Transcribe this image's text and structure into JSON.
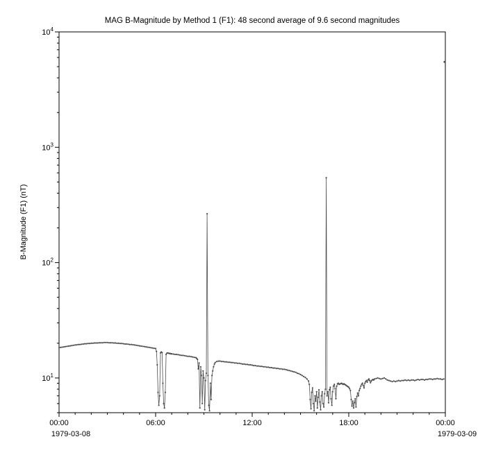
{
  "chart_data": {
    "type": "scatter",
    "title": "MAG  B-Magnitude by Method 1 (F1): 48 second average of 9.6 second magnitudes",
    "ylabel": "B-Magnitude (F1) (nT)",
    "y_scale": "log",
    "y_range": [
      5.0,
      10000
    ],
    "y_ticks_exponents": [
      1,
      2,
      3,
      4
    ],
    "x_range_hours": [
      0,
      24
    ],
    "x_ticks": [
      {
        "hours": 0,
        "label": "00:00"
      },
      {
        "hours": 6,
        "label": "06:00"
      },
      {
        "hours": 12,
        "label": "12:00"
      },
      {
        "hours": 18,
        "label": "18:00"
      },
      {
        "hours": 24,
        "label": "00:00"
      }
    ],
    "x_dates": [
      "1979-03-08",
      "1979-03-09"
    ],
    "marker_color": "#4d4d4d",
    "points": [
      [
        0,
        18.3
      ],
      [
        0.1,
        18.4
      ],
      [
        0.2,
        18.5
      ],
      [
        0.3,
        18.6
      ],
      [
        0.4,
        18.7
      ],
      [
        0.5,
        18.8
      ],
      [
        0.6,
        18.9
      ],
      [
        0.7,
        19
      ],
      [
        0.8,
        19.1
      ],
      [
        0.9,
        19.2
      ],
      [
        1,
        19.3
      ],
      [
        1.1,
        19.4
      ],
      [
        1.2,
        19.5
      ],
      [
        1.3,
        19.5
      ],
      [
        1.4,
        19.6
      ],
      [
        1.5,
        19.7
      ],
      [
        1.6,
        19.8
      ],
      [
        1.7,
        19.8
      ],
      [
        1.8,
        19.9
      ],
      [
        1.9,
        19.9
      ],
      [
        2,
        20
      ],
      [
        2.1,
        20
      ],
      [
        2.2,
        20.1
      ],
      [
        2.3,
        20.1
      ],
      [
        2.4,
        20.1
      ],
      [
        2.5,
        20.2
      ],
      [
        2.6,
        20.2
      ],
      [
        2.7,
        20.2
      ],
      [
        2.8,
        20.3
      ],
      [
        2.9,
        20.3
      ],
      [
        3,
        20.3
      ],
      [
        3.1,
        20.2
      ],
      [
        3.2,
        20.2
      ],
      [
        3.3,
        20.2
      ],
      [
        3.4,
        20.1
      ],
      [
        3.5,
        20.1
      ],
      [
        3.6,
        20
      ],
      [
        3.7,
        20
      ],
      [
        3.8,
        19.9
      ],
      [
        3.9,
        19.9
      ],
      [
        4,
        19.8
      ],
      [
        4.1,
        19.7
      ],
      [
        4.2,
        19.7
      ],
      [
        4.3,
        19.6
      ],
      [
        4.4,
        19.5
      ],
      [
        4.5,
        19.5
      ],
      [
        4.6,
        19.4
      ],
      [
        4.7,
        19.3
      ],
      [
        4.8,
        19.2
      ],
      [
        4.9,
        19.1
      ],
      [
        5,
        19
      ],
      [
        5.1,
        18.9
      ],
      [
        5.2,
        18.8
      ],
      [
        5.3,
        18.7
      ],
      [
        5.4,
        18.6
      ],
      [
        5.5,
        18.5
      ],
      [
        5.6,
        18.4
      ],
      [
        5.7,
        18.3
      ],
      [
        5.8,
        18.2
      ],
      [
        5.9,
        18.1
      ],
      [
        6,
        18
      ],
      [
        6.05,
        17
      ],
      [
        6.1,
        13
      ],
      [
        6.15,
        7.5
      ],
      [
        6.2,
        5.8
      ],
      [
        6.25,
        7
      ],
      [
        6.3,
        16.5
      ],
      [
        6.35,
        16.8
      ],
      [
        6.4,
        16.6
      ],
      [
        6.45,
        9
      ],
      [
        6.5,
        6
      ],
      [
        6.55,
        5.5
      ],
      [
        6.6,
        7.5
      ],
      [
        6.65,
        16
      ],
      [
        6.7,
        16.4
      ],
      [
        6.75,
        16.5
      ],
      [
        6.8,
        16.4
      ],
      [
        6.85,
        16.3
      ],
      [
        6.9,
        16.3
      ],
      [
        6.95,
        16.2
      ],
      [
        7,
        16.2
      ],
      [
        7.1,
        16.1
      ],
      [
        7.2,
        16
      ],
      [
        7.3,
        16
      ],
      [
        7.4,
        15.9
      ],
      [
        7.5,
        15.8
      ],
      [
        7.6,
        15.7
      ],
      [
        7.7,
        15.7
      ],
      [
        7.8,
        15.6
      ],
      [
        7.9,
        15.5
      ],
      [
        8,
        15.4
      ],
      [
        8.1,
        15.4
      ],
      [
        8.2,
        15.3
      ],
      [
        8.3,
        15.2
      ],
      [
        8.4,
        15.1
      ],
      [
        8.5,
        15
      ],
      [
        8.55,
        14.8
      ],
      [
        8.6,
        14.5
      ],
      [
        8.65,
        12
      ],
      [
        8.7,
        13.5
      ],
      [
        8.75,
        5.5
      ],
      [
        8.8,
        12.5
      ],
      [
        8.85,
        10.5
      ],
      [
        8.9,
        6
      ],
      [
        8.95,
        11.5
      ],
      [
        9,
        10
      ],
      [
        9.05,
        5.3
      ],
      [
        9.1,
        9.5
      ],
      [
        9.15,
        11
      ],
      [
        9.2,
        265
      ],
      [
        9.25,
        10.5
      ],
      [
        9.3,
        5.8
      ],
      [
        9.35,
        5.2
      ],
      [
        9.4,
        9
      ],
      [
        9.45,
        6.5
      ],
      [
        9.5,
        10.5
      ],
      [
        9.55,
        11.5
      ],
      [
        9.6,
        12.5
      ],
      [
        9.65,
        13.2
      ],
      [
        9.7,
        13.6
      ],
      [
        9.8,
        13.9
      ],
      [
        9.9,
        14
      ],
      [
        10,
        14
      ],
      [
        10.1,
        13.9
      ],
      [
        10.2,
        13.9
      ],
      [
        10.3,
        13.8
      ],
      [
        10.4,
        13.8
      ],
      [
        10.5,
        13.7
      ],
      [
        10.6,
        13.7
      ],
      [
        10.7,
        13.6
      ],
      [
        10.8,
        13.6
      ],
      [
        10.9,
        13.5
      ],
      [
        11,
        13.5
      ],
      [
        11.1,
        13.4
      ],
      [
        11.2,
        13.4
      ],
      [
        11.3,
        13.3
      ],
      [
        11.4,
        13.2
      ],
      [
        11.5,
        13.2
      ],
      [
        11.6,
        13.1
      ],
      [
        11.7,
        13.1
      ],
      [
        11.8,
        13
      ],
      [
        11.9,
        13
      ],
      [
        12,
        12.9
      ],
      [
        12.1,
        12.8
      ],
      [
        12.2,
        12.8
      ],
      [
        12.3,
        12.7
      ],
      [
        12.4,
        12.7
      ],
      [
        12.5,
        12.6
      ],
      [
        12.6,
        12.6
      ],
      [
        12.7,
        12.5
      ],
      [
        12.8,
        12.5
      ],
      [
        12.9,
        12.4
      ],
      [
        13,
        12.4
      ],
      [
        13.1,
        12.3
      ],
      [
        13.2,
        12.3
      ],
      [
        13.3,
        12.2
      ],
      [
        13.4,
        12.2
      ],
      [
        13.5,
        12.1
      ],
      [
        13.6,
        12.1
      ],
      [
        13.7,
        12
      ],
      [
        13.8,
        12
      ],
      [
        13.9,
        11.9
      ],
      [
        14,
        11.9
      ],
      [
        14.1,
        11.8
      ],
      [
        14.2,
        11.7
      ],
      [
        14.3,
        11.6
      ],
      [
        14.4,
        11.5
      ],
      [
        14.5,
        11.4
      ],
      [
        14.6,
        11.3
      ],
      [
        14.7,
        11.2
      ],
      [
        14.8,
        11
      ],
      [
        14.9,
        10.9
      ],
      [
        15,
        10.7
      ],
      [
        15.1,
        10.5
      ],
      [
        15.2,
        10.3
      ],
      [
        15.3,
        10.1
      ],
      [
        15.4,
        9.8
      ],
      [
        15.5,
        9.4
      ],
      [
        15.55,
        8.8
      ],
      [
        15.6,
        6.5
      ],
      [
        15.65,
        5.4
      ],
      [
        15.7,
        7.5
      ],
      [
        15.75,
        8.2
      ],
      [
        15.8,
        6
      ],
      [
        15.85,
        5.2
      ],
      [
        15.9,
        7
      ],
      [
        15.95,
        6.3
      ],
      [
        16,
        7.6
      ],
      [
        16.05,
        5.5
      ],
      [
        16.1,
        6.8
      ],
      [
        16.15,
        7.9
      ],
      [
        16.2,
        6.2
      ],
      [
        16.25,
        5.3
      ],
      [
        16.3,
        7
      ],
      [
        16.35,
        7.6
      ],
      [
        16.4,
        6
      ],
      [
        16.45,
        5.6
      ],
      [
        16.5,
        7.3
      ],
      [
        16.55,
        8
      ],
      [
        16.6,
        545
      ],
      [
        16.65,
        7
      ],
      [
        16.7,
        7.6
      ],
      [
        16.75,
        6.1
      ],
      [
        16.8,
        7.9
      ],
      [
        16.85,
        8.3
      ],
      [
        16.9,
        6.6
      ],
      [
        16.95,
        5.8
      ],
      [
        17,
        7.6
      ],
      [
        17.05,
        8.5
      ],
      [
        17.1,
        8.8
      ],
      [
        17.15,
        8.1
      ],
      [
        17.2,
        6.6
      ],
      [
        17.25,
        8.5
      ],
      [
        17.3,
        8.9
      ],
      [
        17.35,
        9
      ],
      [
        17.4,
        8.8
      ],
      [
        17.45,
        8.9
      ],
      [
        17.5,
        8.9
      ],
      [
        17.55,
        9
      ],
      [
        17.6,
        8.9
      ],
      [
        17.65,
        8.8
      ],
      [
        17.7,
        8.9
      ],
      [
        17.75,
        8.8
      ],
      [
        17.8,
        8.7
      ],
      [
        17.85,
        8.6
      ],
      [
        17.9,
        8.5
      ],
      [
        17.95,
        8.4
      ],
      [
        18,
        8.3
      ],
      [
        18.05,
        8.1
      ],
      [
        18.1,
        7.8
      ],
      [
        18.15,
        6.5
      ],
      [
        18.2,
        5.7
      ],
      [
        18.25,
        6.3
      ],
      [
        18.3,
        5.5
      ],
      [
        18.35,
        6.1
      ],
      [
        18.4,
        6.6
      ],
      [
        18.45,
        5.6
      ],
      [
        18.5,
        6.9
      ],
      [
        18.55,
        7.4
      ],
      [
        18.6,
        7
      ],
      [
        18.65,
        7.8
      ],
      [
        18.7,
        8.1
      ],
      [
        18.75,
        8.5
      ],
      [
        18.8,
        8.8
      ],
      [
        18.85,
        9
      ],
      [
        18.9,
        8.6
      ],
      [
        18.95,
        8.2
      ],
      [
        19,
        9
      ],
      [
        19.05,
        9.3
      ],
      [
        19.1,
        9.5
      ],
      [
        19.15,
        9.2
      ],
      [
        19.2,
        9.6
      ],
      [
        19.25,
        9.8
      ],
      [
        19.3,
        9.5
      ],
      [
        19.35,
        9.1
      ],
      [
        19.4,
        9.4
      ],
      [
        19.45,
        9.6
      ],
      [
        19.5,
        9.7
      ],
      [
        19.55,
        9.6
      ],
      [
        19.6,
        9.8
      ],
      [
        19.7,
        9.9
      ],
      [
        19.8,
        10
      ],
      [
        19.9,
        9.9
      ],
      [
        20,
        9.8
      ],
      [
        20.1,
        9.9
      ],
      [
        20.2,
        10
      ],
      [
        20.3,
        9.8
      ],
      [
        20.4,
        9.6
      ],
      [
        20.5,
        9.5
      ],
      [
        20.6,
        9.4
      ],
      [
        20.7,
        9.3
      ],
      [
        20.8,
        9.4
      ],
      [
        20.9,
        9.3
      ],
      [
        21,
        9.4
      ],
      [
        21.1,
        9.5
      ],
      [
        21.2,
        9.4
      ],
      [
        21.3,
        9.5
      ],
      [
        21.4,
        9.5
      ],
      [
        21.5,
        9.6
      ],
      [
        21.6,
        9.5
      ],
      [
        21.7,
        9.6
      ],
      [
        21.8,
        9.5
      ],
      [
        21.9,
        9.6
      ],
      [
        22,
        9.6
      ],
      [
        22.1,
        9.5
      ],
      [
        22.2,
        9.6
      ],
      [
        22.3,
        9.7
      ],
      [
        22.4,
        9.6
      ],
      [
        22.5,
        9.7
      ],
      [
        22.6,
        9.7
      ],
      [
        22.7,
        9.6
      ],
      [
        22.8,
        9.7
      ],
      [
        22.9,
        9.7
      ],
      [
        23,
        9.8
      ],
      [
        23.1,
        9.8
      ],
      [
        23.2,
        9.7
      ],
      [
        23.3,
        9.8
      ],
      [
        23.4,
        9.8
      ],
      [
        23.5,
        9.9
      ],
      [
        23.6,
        9.8
      ],
      [
        23.7,
        9.8
      ],
      [
        23.8,
        9.7
      ],
      [
        23.9,
        9.8
      ]
    ],
    "outliers": [
      [
        23.95,
        5500
      ]
    ]
  }
}
